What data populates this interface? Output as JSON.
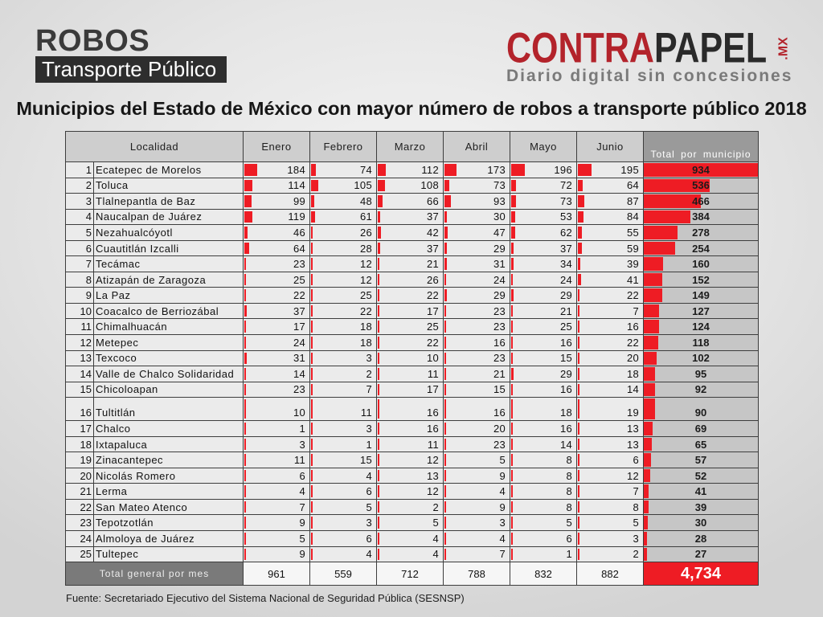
{
  "header": {
    "title": "ROBOS",
    "subtitle": "Transporte Público"
  },
  "logo": {
    "part1": "CONTRA",
    "part2": "PAPEL",
    "suffix": ".MX",
    "tagline": "Diario digital sin concesiones"
  },
  "colors": {
    "data_bar": "#ee1c24",
    "grand_total": "#ee1c24",
    "brand_red": "#b3232b",
    "brand_dark": "#2a2a2a"
  },
  "chart_data": {
    "type": "table",
    "title": "Municipios del Estado de México con mayor número de robos a transporte público 2018",
    "columns": {
      "locality": "Localidad",
      "months": [
        "Enero",
        "Febrero",
        "Marzo",
        "Abril",
        "Mayo",
        "Junio"
      ],
      "total": "Total por municipio"
    },
    "rows": [
      {
        "rank": 1,
        "name": "Ecatepec de Morelos",
        "values": [
          184,
          74,
          112,
          173,
          196,
          195
        ],
        "total": 934
      },
      {
        "rank": 2,
        "name": "Toluca",
        "values": [
          114,
          105,
          108,
          73,
          72,
          64
        ],
        "total": 536
      },
      {
        "rank": 3,
        "name": "Tlalnepantla de Baz",
        "values": [
          99,
          48,
          66,
          93,
          73,
          87
        ],
        "total": 466
      },
      {
        "rank": 4,
        "name": "Naucalpan de Juárez",
        "values": [
          119,
          61,
          37,
          30,
          53,
          84
        ],
        "total": 384
      },
      {
        "rank": 5,
        "name": "Nezahualcóyotl",
        "values": [
          46,
          26,
          42,
          47,
          62,
          55
        ],
        "total": 278
      },
      {
        "rank": 6,
        "name": "Cuautitlán Izcalli",
        "values": [
          64,
          28,
          37,
          29,
          37,
          59
        ],
        "total": 254
      },
      {
        "rank": 7,
        "name": "Tecámac",
        "values": [
          23,
          12,
          21,
          31,
          34,
          39
        ],
        "total": 160
      },
      {
        "rank": 8,
        "name": "Atizapán de Zaragoza",
        "values": [
          25,
          12,
          26,
          24,
          24,
          41
        ],
        "total": 152
      },
      {
        "rank": 9,
        "name": "La Paz",
        "values": [
          22,
          25,
          22,
          29,
          29,
          22
        ],
        "total": 149
      },
      {
        "rank": 10,
        "name": "Coacalco de Berriozábal",
        "values": [
          37,
          22,
          17,
          23,
          21,
          7
        ],
        "total": 127
      },
      {
        "rank": 11,
        "name": "Chimalhuacán",
        "values": [
          17,
          18,
          25,
          23,
          25,
          16
        ],
        "total": 124
      },
      {
        "rank": 12,
        "name": "Metepec",
        "values": [
          24,
          18,
          22,
          16,
          16,
          22
        ],
        "total": 118
      },
      {
        "rank": 13,
        "name": "Texcoco",
        "values": [
          31,
          3,
          10,
          23,
          15,
          20
        ],
        "total": 102
      },
      {
        "rank": 14,
        "name": "Valle de Chalco Solidaridad",
        "values": [
          14,
          2,
          11,
          21,
          29,
          18
        ],
        "total": 95
      },
      {
        "rank": 15,
        "name": "Chicoloapan",
        "values": [
          23,
          7,
          17,
          15,
          16,
          14
        ],
        "total": 92
      },
      {
        "rank": 16,
        "name": "Tultitlán",
        "values": [
          10,
          11,
          16,
          16,
          18,
          19
        ],
        "total": 90
      },
      {
        "rank": 17,
        "name": "Chalco",
        "values": [
          1,
          3,
          16,
          20,
          16,
          13
        ],
        "total": 69
      },
      {
        "rank": 18,
        "name": "Ixtapaluca",
        "values": [
          3,
          1,
          11,
          23,
          14,
          13
        ],
        "total": 65
      },
      {
        "rank": 19,
        "name": "Zinacantepec",
        "values": [
          11,
          15,
          12,
          5,
          8,
          6
        ],
        "total": 57
      },
      {
        "rank": 20,
        "name": "Nicolás Romero",
        "values": [
          6,
          4,
          13,
          9,
          8,
          12
        ],
        "total": 52
      },
      {
        "rank": 21,
        "name": "Lerma",
        "values": [
          4,
          6,
          12,
          4,
          8,
          7
        ],
        "total": 41
      },
      {
        "rank": 22,
        "name": "San Mateo Atenco",
        "values": [
          7,
          5,
          2,
          9,
          8,
          8
        ],
        "total": 39
      },
      {
        "rank": 23,
        "name": "Tepotzotlán",
        "values": [
          9,
          3,
          5,
          3,
          5,
          5
        ],
        "total": 30
      },
      {
        "rank": 24,
        "name": "Almoloya de Juárez",
        "values": [
          5,
          6,
          4,
          4,
          6,
          3
        ],
        "total": 28
      },
      {
        "rank": 25,
        "name": "Tultepec",
        "values": [
          9,
          4,
          4,
          7,
          1,
          2
        ],
        "total": 27
      }
    ],
    "totals": {
      "label": "Total general por mes",
      "values": [
        961,
        559,
        712,
        788,
        832,
        882
      ],
      "grand_total": "4,734"
    }
  },
  "footer": {
    "source": "Fuente: Secretariado Ejecutivo del Sistema Nacional de Seguridad Pública (SESNSP)"
  }
}
